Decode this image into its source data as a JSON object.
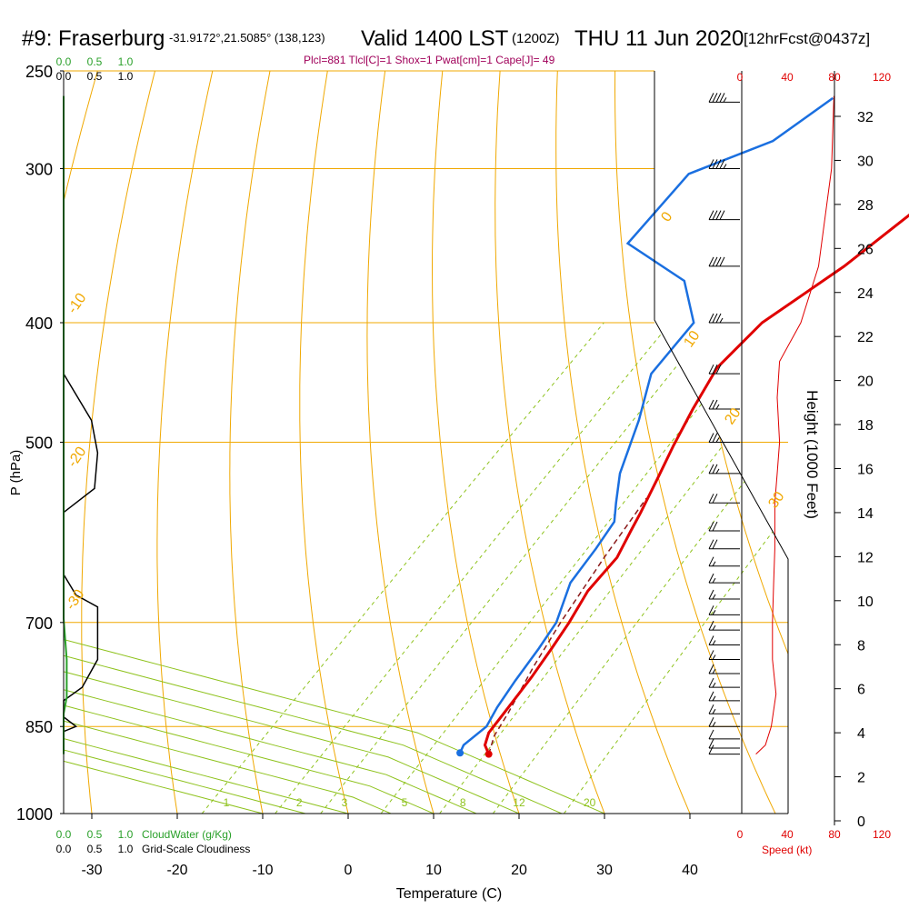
{
  "header": {
    "station": "#9: Fraserburg",
    "coords": "-31.9172°,21.5085° (138,123)",
    "valid": "Valid 1400 LST",
    "zulu": "(1200Z)",
    "date": "THU 11 Jun 2020",
    "fcst": "[12hrFcst@0437z]",
    "params": "Plcl=881 Tlcl[C]=1 Shox=1 Pwat[cm]=1 Cape[J]= 49"
  },
  "colors": {
    "isobar": "#f0a800",
    "dry_adiabat": "#f0a800",
    "moist_adiabat": "#8ec21c",
    "mixing_ratio": "#8ec21c",
    "temperature": "#e00000",
    "dewpoint": "#1a6fe0",
    "parcel": "#8b1a1a",
    "cloud_water": "#2aa02a",
    "cloudiness": "#000000",
    "speed": "#e00000",
    "params": "#a0005a"
  },
  "chart_data": {
    "type": "line",
    "xlabel": "Temperature (C)",
    "ylabel": "P (hPa)",
    "right_label": "Height (1000 Feet)",
    "temp_ticks": [
      "-30",
      "-20",
      "-10",
      "0",
      "10",
      "20",
      "30",
      "40"
    ],
    "pressure_ticks": [
      "250",
      "300",
      "400",
      "500",
      "700",
      "850",
      "1000"
    ],
    "height_ticks": [
      "32",
      "30",
      "28",
      "26",
      "24",
      "22",
      "20",
      "18",
      "16",
      "14",
      "12",
      "10",
      "8",
      "6",
      "4",
      "2",
      "0"
    ],
    "cloud_water_ticks": [
      "0.0",
      "0.5",
      "1.0"
    ],
    "cloudiness_ticks": [
      "0.0",
      "0.5",
      "1.0"
    ],
    "speed_ticks": [
      "0",
      "40",
      "80",
      "120"
    ],
    "cloud_water_label": "CloudWater (g/Kg)",
    "cloudiness_label": "Grid-Scale Cloudiness",
    "speed_label": "Speed (kt)",
    "dry_adiabat_labels": [
      "0",
      "10",
      "20",
      "30",
      "-10",
      "-20",
      "-30"
    ],
    "mixing_ratio_labels": [
      "1",
      "2",
      "3",
      "5",
      "8",
      "12",
      "20"
    ],
    "series": [
      {
        "key": "temperature",
        "points": [
          [
            -0.3,
            262
          ],
          [
            -2,
            280
          ],
          [
            -4,
            320
          ],
          [
            -6,
            360
          ],
          [
            -9,
            400
          ],
          [
            -9,
            420
          ],
          [
            -9,
            435
          ],
          [
            -7,
            470
          ],
          [
            -5,
            503
          ],
          [
            -3,
            535
          ],
          [
            -1,
            570
          ],
          [
            0,
            590
          ],
          [
            1.5,
            620
          ],
          [
            2,
            660
          ],
          [
            3.5,
            700
          ],
          [
            4.5,
            735
          ],
          [
            5.5,
            775
          ],
          [
            6.5,
            830
          ],
          [
            7,
            860
          ],
          [
            8,
            880
          ],
          [
            9.5,
            895
          ]
        ]
      },
      {
        "key": "dewpoint",
        "points": [
          [
            -27,
            263
          ],
          [
            -29,
            285
          ],
          [
            -35,
            303
          ],
          [
            -34,
            345
          ],
          [
            -23,
            370
          ],
          [
            -17,
            400
          ],
          [
            -16,
            440
          ],
          [
            -12,
            480
          ],
          [
            -8,
            530
          ],
          [
            -5,
            560
          ],
          [
            -3,
            580
          ],
          [
            -2,
            610
          ],
          [
            -1,
            650
          ],
          [
            2,
            700
          ],
          [
            3,
            735
          ],
          [
            4,
            780
          ],
          [
            5,
            820
          ],
          [
            6,
            850
          ],
          [
            5.5,
            880
          ],
          [
            6,
            893
          ]
        ]
      },
      {
        "key": "parcel",
        "points": [
          [
            9.5,
            895
          ],
          [
            8,
            865
          ],
          [
            7,
            830
          ],
          [
            4.5,
            760
          ],
          [
            2.5,
            700
          ],
          [
            0,
            620
          ],
          [
            -2,
            555
          ]
        ]
      },
      {
        "key": "cloudiness",
        "points": [
          [
            0.0,
            440
          ],
          [
            0.45,
            480
          ],
          [
            0.55,
            510
          ],
          [
            0.5,
            545
          ],
          [
            0.0,
            570
          ],
          [
            0.0,
            640
          ],
          [
            0.2,
            665
          ],
          [
            0.55,
            680
          ],
          [
            0.55,
            720
          ],
          [
            0.55,
            750
          ],
          [
            0.3,
            790
          ],
          [
            0.0,
            810
          ],
          [
            0.0,
            835
          ],
          [
            0.2,
            850
          ],
          [
            0.0,
            858
          ],
          [
            0.0,
            870
          ]
        ]
      },
      {
        "key": "cloud_water",
        "points": [
          [
            0.0,
            262
          ],
          [
            0.0,
            695
          ],
          [
            0.05,
            750
          ],
          [
            0.05,
            805
          ],
          [
            0.0,
            830
          ],
          [
            0.0,
            895
          ]
        ]
      },
      {
        "key": "speed",
        "points": [
          [
            78,
            262
          ],
          [
            76,
            300
          ],
          [
            65,
            360
          ],
          [
            50,
            400
          ],
          [
            32,
            430
          ],
          [
            30,
            460
          ],
          [
            32,
            500
          ],
          [
            30,
            530
          ],
          [
            28,
            560
          ],
          [
            28,
            610
          ],
          [
            27,
            650
          ],
          [
            26,
            700
          ],
          [
            26,
            750
          ],
          [
            29,
            800
          ],
          [
            25,
            850
          ],
          [
            20,
            880
          ],
          [
            12,
            895
          ]
        ]
      }
    ],
    "wind_speed_levels": [
      [
        265,
        45
      ],
      [
        300,
        45
      ],
      [
        330,
        40
      ],
      [
        360,
        40
      ],
      [
        400,
        35
      ],
      [
        440,
        30
      ],
      [
        470,
        25
      ],
      [
        500,
        25
      ],
      [
        530,
        25
      ],
      [
        560,
        20
      ],
      [
        590,
        20
      ],
      [
        610,
        20
      ],
      [
        630,
        15
      ],
      [
        650,
        15
      ],
      [
        670,
        15
      ],
      [
        690,
        15
      ],
      [
        710,
        15
      ],
      [
        730,
        15
      ],
      [
        750,
        15
      ],
      [
        770,
        15
      ],
      [
        790,
        15
      ],
      [
        810,
        15
      ],
      [
        830,
        15
      ],
      [
        850,
        15
      ],
      [
        870,
        10
      ],
      [
        885,
        10
      ],
      [
        895,
        10
      ]
    ]
  }
}
